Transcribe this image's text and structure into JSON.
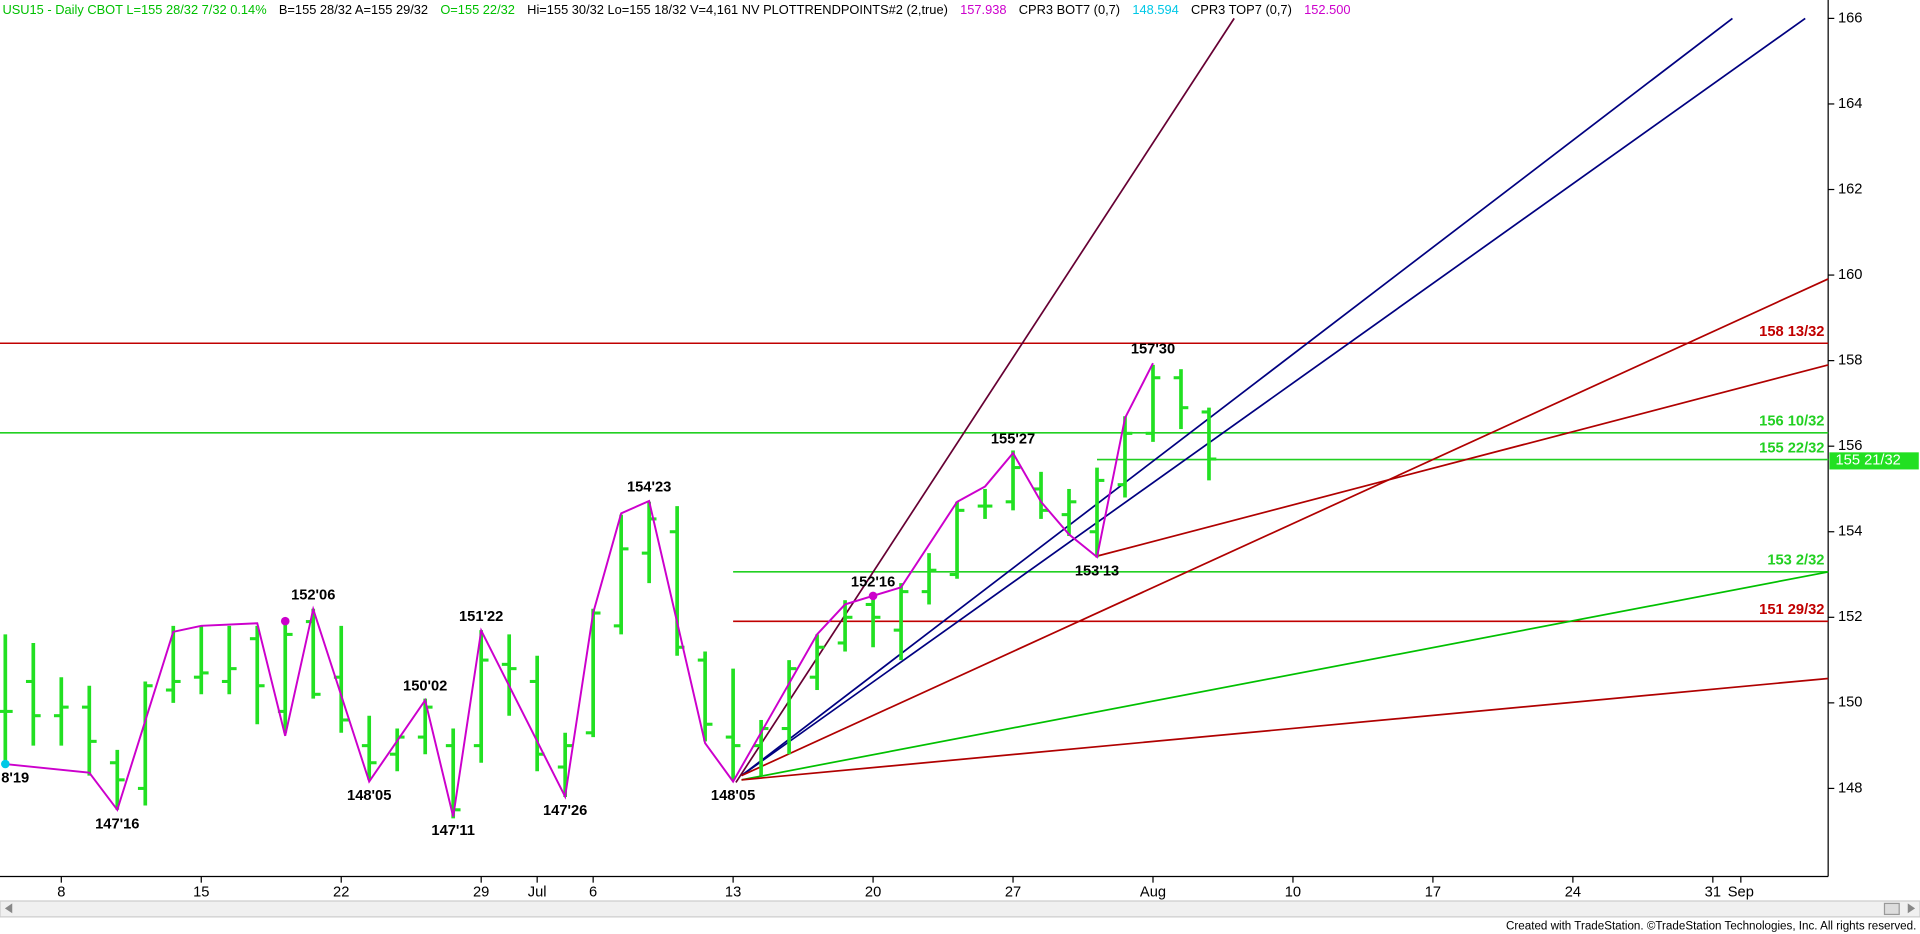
{
  "chart_data": {
    "type": "ohlc",
    "header": {
      "segments": [
        {
          "text": "USU15 - Daily  CBOT  L=155 28/32  7/32  0.14%",
          "color": "#00c000"
        },
        {
          "text": "B=155 28/32  A=155 29/32",
          "color": "#000000"
        },
        {
          "text": "O=155 22/32",
          "color": "#00c000"
        },
        {
          "text": "Hi=155 30/32  Lo=155 18/32  V=4,161  NV  PLOTTRENDPOINTS#2 (2,true)",
          "color": "#000000"
        },
        {
          "text": "157.938",
          "color": "#cc00cc"
        },
        {
          "text": "CPR3 BOT7 (0,7)",
          "color": "#000000"
        },
        {
          "text": "148.594",
          "color": "#00c8e6"
        },
        {
          "text": "CPR3 TOP7 (0,7)",
          "color": "#000000"
        },
        {
          "text": "152.500",
          "color": "#cc00cc"
        }
      ]
    },
    "footer": "Created with TradeStation. ©TradeStation Technologies, Inc. All rights reserved.",
    "xlim": [
      -2.19,
      63.12
    ],
    "xticks": [
      {
        "value": 0,
        "label": "8"
      },
      {
        "value": 5,
        "label": "15"
      },
      {
        "value": 10,
        "label": "22"
      },
      {
        "value": 15,
        "label": "29"
      },
      {
        "value": 17,
        "label": "Jul"
      },
      {
        "value": 19,
        "label": "6"
      },
      {
        "value": 24,
        "label": "13"
      },
      {
        "value": 29,
        "label": "20"
      },
      {
        "value": 34,
        "label": "27"
      },
      {
        "value": 39,
        "label": "Aug"
      },
      {
        "value": 44,
        "label": "10"
      },
      {
        "value": 49,
        "label": "17"
      },
      {
        "value": 54,
        "label": "24"
      },
      {
        "value": 59,
        "label": "31"
      },
      {
        "value": 60,
        "label": "Sep"
      }
    ],
    "ylim": [
      145.94,
      166.43
    ],
    "yticks": [
      148,
      150,
      152,
      154,
      156,
      158,
      160,
      162,
      164,
      166
    ],
    "bar_color": "#22e022",
    "x": [
      -2,
      -1,
      0,
      1,
      2,
      3,
      4,
      5,
      6,
      7,
      8,
      9,
      10,
      11,
      12,
      13,
      14,
      15,
      16,
      17,
      18,
      19,
      20,
      21,
      22,
      23,
      24,
      25,
      26,
      27,
      28,
      29,
      30,
      31,
      32,
      33,
      34,
      35,
      36,
      37,
      38,
      39,
      40,
      41
    ],
    "open": [
      149.8,
      150.5,
      149.7,
      149.9,
      148.6,
      148.0,
      150.3,
      150.6,
      150.5,
      151.5,
      149.8,
      151.9,
      150.6,
      149.0,
      148.8,
      149.2,
      149.0,
      149.0,
      150.9,
      150.5,
      148.5,
      149.3,
      151.8,
      153.5,
      154.0,
      151.0,
      149.2,
      149.0,
      149.4,
      150.6,
      151.4,
      152.3,
      151.7,
      152.6,
      153.0,
      154.6,
      154.7,
      155.0,
      154.4,
      154.0,
      155.1,
      156.3,
      157.6,
      156.8
    ],
    "high": [
      151.6,
      151.4,
      150.6,
      150.4,
      148.9,
      150.5,
      151.8,
      151.8,
      151.8,
      151.8,
      151.9,
      152.2,
      151.8,
      149.7,
      149.4,
      150.1,
      149.4,
      151.7,
      151.6,
      151.1,
      149.3,
      152.2,
      154.4,
      154.7,
      154.6,
      151.2,
      150.8,
      149.6,
      151.0,
      151.6,
      152.4,
      152.5,
      152.8,
      153.5,
      154.7,
      155.0,
      155.9,
      155.4,
      155.0,
      155.5,
      156.7,
      157.9,
      157.8,
      156.9
    ],
    "low": [
      148.6,
      149.0,
      149.0,
      148.3,
      147.5,
      147.6,
      150.0,
      150.2,
      150.2,
      149.5,
      149.3,
      150.1,
      149.3,
      148.2,
      148.4,
      148.8,
      147.3,
      148.6,
      149.7,
      148.4,
      147.8,
      149.2,
      151.6,
      152.8,
      151.1,
      149.1,
      148.2,
      148.3,
      148.8,
      150.3,
      151.2,
      151.3,
      151.0,
      152.3,
      152.9,
      154.3,
      154.5,
      154.3,
      153.9,
      153.4,
      154.8,
      156.1,
      156.4,
      155.2
    ],
    "close": [
      149.8,
      149.7,
      149.9,
      149.1,
      148.2,
      150.4,
      150.5,
      150.7,
      150.8,
      150.4,
      151.6,
      150.2,
      149.6,
      148.6,
      149.2,
      149.9,
      147.5,
      151.0,
      150.8,
      148.8,
      149.0,
      152.1,
      153.6,
      154.3,
      151.3,
      149.5,
      149.0,
      149.4,
      150.8,
      151.3,
      152.0,
      152.0,
      152.6,
      153.1,
      154.5,
      154.6,
      155.5,
      154.5,
      154.7,
      155.2,
      156.3,
      157.6,
      156.9,
      155.7
    ],
    "trend_points": {
      "color": "#cc00cc",
      "x": [
        -2,
        1,
        2,
        4,
        5,
        7,
        8,
        9,
        11,
        13,
        14,
        15,
        18,
        19,
        20,
        21,
        23,
        24,
        27,
        28,
        29,
        30,
        32,
        33,
        34,
        35,
        36,
        37,
        38,
        39
      ],
      "y": [
        148.57,
        148.37,
        147.5,
        151.66,
        151.8,
        151.86,
        149.23,
        152.19,
        148.16,
        150.06,
        147.34,
        151.69,
        147.81,
        152.1,
        154.43,
        154.72,
        149.06,
        148.16,
        151.6,
        152.3,
        152.5,
        152.7,
        154.7,
        155.06,
        155.84,
        154.7,
        153.94,
        153.41,
        156.66,
        157.94
      ]
    },
    "markers": [
      {
        "x": -2,
        "y": 148.57,
        "color": "#00c8e6"
      },
      {
        "x": 8,
        "y": 151.91,
        "color": "#cc00cc"
      },
      {
        "x": 29,
        "y": 152.5,
        "color": "#cc00cc"
      }
    ],
    "annotations": [
      {
        "text": "8'19",
        "x": -2,
        "y": 148.57,
        "side": "below"
      },
      {
        "text": "147'16",
        "x": 2,
        "y": 147.5,
        "side": "below"
      },
      {
        "text": "152'06",
        "x": 9,
        "y": 152.19,
        "side": "above"
      },
      {
        "text": "148'05",
        "x": 11,
        "y": 148.16,
        "side": "below"
      },
      {
        "text": "150'02",
        "x": 13,
        "y": 150.06,
        "side": "above"
      },
      {
        "text": "147'11",
        "x": 14,
        "y": 147.34,
        "side": "below"
      },
      {
        "text": "151'22",
        "x": 15,
        "y": 151.69,
        "side": "above"
      },
      {
        "text": "147'26",
        "x": 18,
        "y": 147.81,
        "side": "below"
      },
      {
        "text": "154'23",
        "x": 21,
        "y": 154.72,
        "side": "above"
      },
      {
        "text": "148'05",
        "x": 24,
        "y": 148.16,
        "side": "below"
      },
      {
        "text": "152'16",
        "x": 29,
        "y": 152.5,
        "side": "above"
      },
      {
        "text": "155'27",
        "x": 34,
        "y": 155.84,
        "side": "above"
      },
      {
        "text": "153'13",
        "x": 37,
        "y": 153.41,
        "side": "below"
      },
      {
        "text": "157'30",
        "x": 39,
        "y": 157.94,
        "side": "above"
      }
    ],
    "trendlines": [
      {
        "x": [
          24.1,
          41.9
        ],
        "y": [
          148.14,
          166.0
        ],
        "color": "#660033"
      },
      {
        "x": [
          24.3,
          59.7
        ],
        "y": [
          148.3,
          166.0
        ],
        "color": "#000080"
      },
      {
        "x": [
          24.3,
          62.3
        ],
        "y": [
          148.3,
          166.0
        ],
        "color": "#000080"
      },
      {
        "x": [
          37.0,
          63.12
        ],
        "y": [
          153.43,
          157.9
        ],
        "color": "#b00000"
      },
      {
        "x": [
          24.3,
          63.12
        ],
        "y": [
          148.3,
          159.91
        ],
        "color": "#b00000"
      },
      {
        "x": [
          24.3,
          63.12
        ],
        "y": [
          148.2,
          153.06
        ],
        "color": "#00c000"
      },
      {
        "x": [
          24.3,
          63.12
        ],
        "y": [
          148.2,
          150.57
        ],
        "color": "#b00000"
      }
    ],
    "levels": [
      {
        "label": "158 13/32",
        "value": 158.40625,
        "color": "#c00000",
        "start": -2.19
      },
      {
        "label": "156 10/32",
        "value": 156.3125,
        "color": "#22d022",
        "start": -2.19
      },
      {
        "label": "155 22/32",
        "value": 155.6875,
        "color": "#22d022",
        "start": 37
      },
      {
        "label": "153 2/32",
        "value": 153.0625,
        "color": "#22d022",
        "start": 24
      },
      {
        "label": "151 29/32",
        "value": 151.90625,
        "color": "#c00000",
        "start": 24
      }
    ],
    "last_price": {
      "label": "155 21/32",
      "value": 155.65625,
      "color": "#22e022"
    }
  }
}
